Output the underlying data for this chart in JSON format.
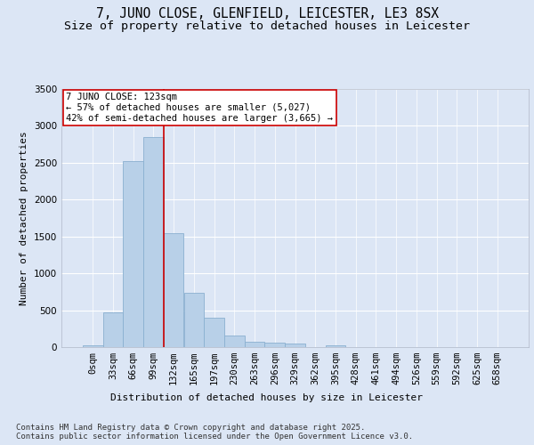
{
  "title_line1": "7, JUNO CLOSE, GLENFIELD, LEICESTER, LE3 8SX",
  "title_line2": "Size of property relative to detached houses in Leicester",
  "xlabel": "Distribution of detached houses by size in Leicester",
  "ylabel": "Number of detached properties",
  "bar_labels": [
    "0sqm",
    "33sqm",
    "66sqm",
    "99sqm",
    "132sqm",
    "165sqm",
    "197sqm",
    "230sqm",
    "263sqm",
    "296sqm",
    "329sqm",
    "362sqm",
    "395sqm",
    "428sqm",
    "461sqm",
    "494sqm",
    "526sqm",
    "559sqm",
    "592sqm",
    "625sqm",
    "658sqm"
  ],
  "bar_values": [
    20,
    470,
    2520,
    2850,
    1540,
    735,
    395,
    155,
    75,
    55,
    45,
    5,
    30,
    5,
    5,
    5,
    0,
    0,
    0,
    0,
    0
  ],
  "bar_color": "#b8d0e8",
  "bar_edge_color": "#8ab0d0",
  "background_color": "#dce6f5",
  "grid_color": "#ffffff",
  "vline_color": "#cc0000",
  "vline_x_index": 3.5,
  "annotation_box_text": "7 JUNO CLOSE: 123sqm\n← 57% of detached houses are smaller (5,027)\n42% of semi-detached houses are larger (3,665) →",
  "annotation_box_color": "#cc0000",
  "ylim": [
    0,
    3500
  ],
  "yticks": [
    0,
    500,
    1000,
    1500,
    2000,
    2500,
    3000,
    3500
  ],
  "footer_text": "Contains HM Land Registry data © Crown copyright and database right 2025.\nContains public sector information licensed under the Open Government Licence v3.0.",
  "title_fontsize": 10.5,
  "subtitle_fontsize": 9.5,
  "axis_label_fontsize": 8,
  "tick_fontsize": 7.5,
  "annotation_fontsize": 7.5,
  "footer_fontsize": 6.5
}
